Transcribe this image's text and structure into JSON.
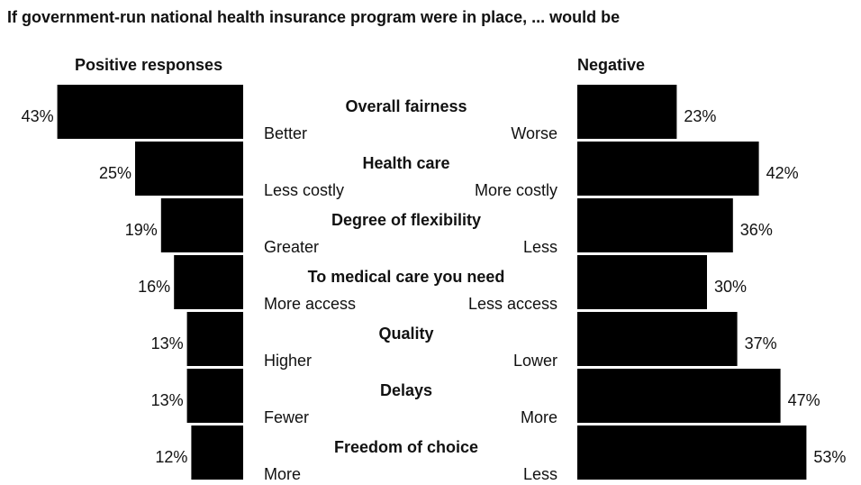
{
  "chart_data": {
    "type": "diverging-bar",
    "title": "If government-run national health insurance program were in place, ... would be",
    "categories": [
      "Overall fairness",
      "Health care",
      "Degree of flexibility",
      "To medical care you need",
      "Quality",
      "Delays",
      "Freedom of choice"
    ],
    "positive_labels": [
      "Better",
      "Less costly",
      "Greater",
      "More access",
      "Higher",
      "Fewer",
      "More"
    ],
    "negative_labels": [
      "Worse",
      "More costly",
      "Less",
      "Less access",
      "Lower",
      "More",
      "Less"
    ],
    "series": [
      {
        "name": "Positive responses",
        "color": "#000000",
        "values": [
          43,
          25,
          19,
          16,
          13,
          13,
          12
        ],
        "value_labels": [
          "43%",
          "25%",
          "19%",
          "16%",
          "13%",
          "13%",
          "12%"
        ]
      },
      {
        "name": "Negative",
        "color": "#000000",
        "values": [
          23,
          42,
          36,
          30,
          37,
          47,
          53
        ],
        "value_labels": [
          "23%",
          "42%",
          "36%",
          "30%",
          "37%",
          "47%",
          "53%"
        ]
      }
    ]
  }
}
